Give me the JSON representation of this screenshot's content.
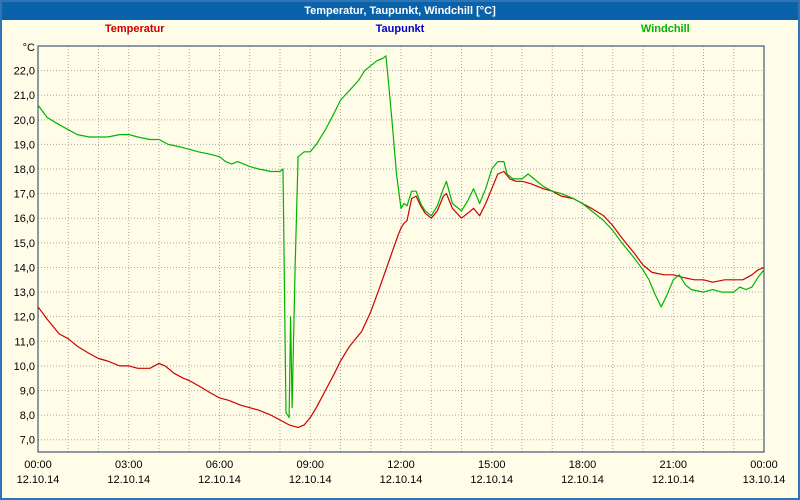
{
  "window": {
    "title": "Temperatur, Taupunkt, Windchill [°C]"
  },
  "colors": {
    "titlebar_bg": "#0a62aa",
    "window_border": "#2e75b6",
    "background": "#fffce8",
    "plot_border": "#1f3864",
    "grid": "#a8a8a8",
    "temperatur": "#cc0000",
    "taupunkt": "#0000cc",
    "windchill": "#00b400"
  },
  "chart_data": {
    "type": "line",
    "title": "Temperatur, Taupunkt, Windchill [°C]",
    "ylabel": "°C",
    "ylim": [
      6.5,
      23.0
    ],
    "xlim_hours": [
      0,
      24
    ],
    "grid": true,
    "legend_position": "top",
    "y_ticks": [
      7,
      8,
      9,
      10,
      11,
      12,
      13,
      14,
      15,
      16,
      17,
      18,
      19,
      20,
      21,
      22
    ],
    "x_ticks": [
      {
        "hour": 0,
        "time": "00:00",
        "date": "12.10.14"
      },
      {
        "hour": 3,
        "time": "03:00",
        "date": "12.10.14"
      },
      {
        "hour": 6,
        "time": "06:00",
        "date": "12.10.14"
      },
      {
        "hour": 9,
        "time": "09:00",
        "date": "12.10.14"
      },
      {
        "hour": 12,
        "time": "12:00",
        "date": "12.10.14"
      },
      {
        "hour": 15,
        "time": "15:00",
        "date": "12.10.14"
      },
      {
        "hour": 18,
        "time": "18:00",
        "date": "12.10.14"
      },
      {
        "hour": 21,
        "time": "21:00",
        "date": "12.10.14"
      },
      {
        "hour": 24,
        "time": "00:00",
        "date": "13.10.14"
      }
    ],
    "legend": [
      {
        "label": "Temperatur",
        "color": "#cc0000"
      },
      {
        "label": "Taupunkt",
        "color": "#0000cc"
      },
      {
        "label": "Windchill",
        "color": "#00b400"
      }
    ],
    "series": [
      {
        "name": "Temperatur",
        "color": "#cc0000",
        "points": [
          [
            0,
            12.4
          ],
          [
            0.3,
            11.9
          ],
          [
            0.7,
            11.3
          ],
          [
            1,
            11.1
          ],
          [
            1.3,
            10.8
          ],
          [
            1.7,
            10.5
          ],
          [
            2,
            10.3
          ],
          [
            2.3,
            10.2
          ],
          [
            2.7,
            10.0
          ],
          [
            3,
            10.0
          ],
          [
            3.3,
            9.9
          ],
          [
            3.7,
            9.9
          ],
          [
            4,
            10.1
          ],
          [
            4.2,
            10.0
          ],
          [
            4.5,
            9.7
          ],
          [
            4.8,
            9.5
          ],
          [
            5,
            9.4
          ],
          [
            5.3,
            9.2
          ],
          [
            5.7,
            8.9
          ],
          [
            6,
            8.7
          ],
          [
            6.3,
            8.6
          ],
          [
            6.7,
            8.4
          ],
          [
            7,
            8.3
          ],
          [
            7.3,
            8.2
          ],
          [
            7.7,
            8.0
          ],
          [
            8,
            7.8
          ],
          [
            8.3,
            7.6
          ],
          [
            8.6,
            7.5
          ],
          [
            8.8,
            7.6
          ],
          [
            9,
            7.9
          ],
          [
            9.2,
            8.3
          ],
          [
            9.5,
            9.0
          ],
          [
            9.8,
            9.7
          ],
          [
            10,
            10.2
          ],
          [
            10.3,
            10.8
          ],
          [
            10.7,
            11.4
          ],
          [
            11,
            12.2
          ],
          [
            11.3,
            13.2
          ],
          [
            11.7,
            14.6
          ],
          [
            11.9,
            15.3
          ],
          [
            12,
            15.6
          ],
          [
            12.1,
            15.8
          ],
          [
            12.2,
            15.9
          ],
          [
            12.35,
            16.8
          ],
          [
            12.5,
            16.9
          ],
          [
            12.65,
            16.5
          ],
          [
            12.8,
            16.2
          ],
          [
            13,
            16.0
          ],
          [
            13.2,
            16.3
          ],
          [
            13.4,
            16.9
          ],
          [
            13.5,
            17.0
          ],
          [
            13.7,
            16.4
          ],
          [
            14,
            16.0
          ],
          [
            14.2,
            16.2
          ],
          [
            14.4,
            16.4
          ],
          [
            14.6,
            16.1
          ],
          [
            14.8,
            16.6
          ],
          [
            15,
            17.2
          ],
          [
            15.2,
            17.8
          ],
          [
            15.4,
            17.9
          ],
          [
            15.6,
            17.6
          ],
          [
            15.8,
            17.5
          ],
          [
            16,
            17.5
          ],
          [
            16.3,
            17.4
          ],
          [
            16.7,
            17.2
          ],
          [
            17,
            17.1
          ],
          [
            17.3,
            16.9
          ],
          [
            17.7,
            16.8
          ],
          [
            18,
            16.6
          ],
          [
            18.3,
            16.4
          ],
          [
            18.7,
            16.1
          ],
          [
            19,
            15.7
          ],
          [
            19.3,
            15.2
          ],
          [
            19.7,
            14.6
          ],
          [
            20,
            14.1
          ],
          [
            20.3,
            13.8
          ],
          [
            20.7,
            13.7
          ],
          [
            21,
            13.7
          ],
          [
            21.3,
            13.6
          ],
          [
            21.7,
            13.5
          ],
          [
            22,
            13.5
          ],
          [
            22.3,
            13.4
          ],
          [
            22.7,
            13.5
          ],
          [
            23,
            13.5
          ],
          [
            23.3,
            13.5
          ],
          [
            23.6,
            13.7
          ],
          [
            23.8,
            13.9
          ],
          [
            24,
            14.0
          ]
        ]
      },
      {
        "name": "Windchill",
        "color": "#00b400",
        "points": [
          [
            0,
            20.6
          ],
          [
            0.3,
            20.1
          ],
          [
            0.7,
            19.8
          ],
          [
            1,
            19.6
          ],
          [
            1.3,
            19.4
          ],
          [
            1.7,
            19.3
          ],
          [
            2,
            19.3
          ],
          [
            2.3,
            19.3
          ],
          [
            2.7,
            19.4
          ],
          [
            3,
            19.4
          ],
          [
            3.3,
            19.3
          ],
          [
            3.7,
            19.2
          ],
          [
            4,
            19.2
          ],
          [
            4.3,
            19.0
          ],
          [
            4.7,
            18.9
          ],
          [
            5,
            18.8
          ],
          [
            5.3,
            18.7
          ],
          [
            5.7,
            18.6
          ],
          [
            6,
            18.5
          ],
          [
            6.2,
            18.3
          ],
          [
            6.4,
            18.2
          ],
          [
            6.6,
            18.3
          ],
          [
            6.8,
            18.2
          ],
          [
            7,
            18.1
          ],
          [
            7.3,
            18.0
          ],
          [
            7.7,
            17.9
          ],
          [
            8,
            17.9
          ],
          [
            8.1,
            18.0
          ],
          [
            8.15,
            13.0
          ],
          [
            8.2,
            8.1
          ],
          [
            8.3,
            7.9
          ],
          [
            8.35,
            12.0
          ],
          [
            8.4,
            8.3
          ],
          [
            8.5,
            14.0
          ],
          [
            8.6,
            18.5
          ],
          [
            8.8,
            18.7
          ],
          [
            9,
            18.7
          ],
          [
            9.2,
            19.0
          ],
          [
            9.5,
            19.6
          ],
          [
            9.8,
            20.3
          ],
          [
            10,
            20.8
          ],
          [
            10.3,
            21.2
          ],
          [
            10.6,
            21.6
          ],
          [
            10.8,
            22.0
          ],
          [
            11,
            22.2
          ],
          [
            11.2,
            22.4
          ],
          [
            11.4,
            22.5
          ],
          [
            11.5,
            22.6
          ],
          [
            11.55,
            22.0
          ],
          [
            11.7,
            20.0
          ],
          [
            11.85,
            17.8
          ],
          [
            12,
            16.4
          ],
          [
            12.1,
            16.6
          ],
          [
            12.2,
            16.5
          ],
          [
            12.35,
            17.1
          ],
          [
            12.5,
            17.1
          ],
          [
            12.65,
            16.6
          ],
          [
            12.8,
            16.3
          ],
          [
            13,
            16.1
          ],
          [
            13.2,
            16.5
          ],
          [
            13.4,
            17.2
          ],
          [
            13.5,
            17.5
          ],
          [
            13.7,
            16.6
          ],
          [
            14,
            16.3
          ],
          [
            14.2,
            16.7
          ],
          [
            14.4,
            17.2
          ],
          [
            14.6,
            16.6
          ],
          [
            14.8,
            17.2
          ],
          [
            15,
            18.0
          ],
          [
            15.2,
            18.3
          ],
          [
            15.4,
            18.3
          ],
          [
            15.5,
            17.8
          ],
          [
            15.7,
            17.6
          ],
          [
            16,
            17.6
          ],
          [
            16.2,
            17.8
          ],
          [
            16.4,
            17.6
          ],
          [
            16.7,
            17.3
          ],
          [
            17,
            17.1
          ],
          [
            17.3,
            17.0
          ],
          [
            17.7,
            16.8
          ],
          [
            18,
            16.6
          ],
          [
            18.3,
            16.3
          ],
          [
            18.7,
            15.9
          ],
          [
            19,
            15.5
          ],
          [
            19.3,
            15.0
          ],
          [
            19.7,
            14.4
          ],
          [
            20,
            13.9
          ],
          [
            20.2,
            13.5
          ],
          [
            20.4,
            12.9
          ],
          [
            20.6,
            12.4
          ],
          [
            20.8,
            12.9
          ],
          [
            21,
            13.5
          ],
          [
            21.2,
            13.7
          ],
          [
            21.4,
            13.3
          ],
          [
            21.6,
            13.1
          ],
          [
            22,
            13.0
          ],
          [
            22.3,
            13.1
          ],
          [
            22.6,
            13.0
          ],
          [
            23,
            13.0
          ],
          [
            23.2,
            13.2
          ],
          [
            23.4,
            13.1
          ],
          [
            23.6,
            13.2
          ],
          [
            23.8,
            13.6
          ],
          [
            24,
            13.9
          ]
        ]
      }
    ]
  }
}
